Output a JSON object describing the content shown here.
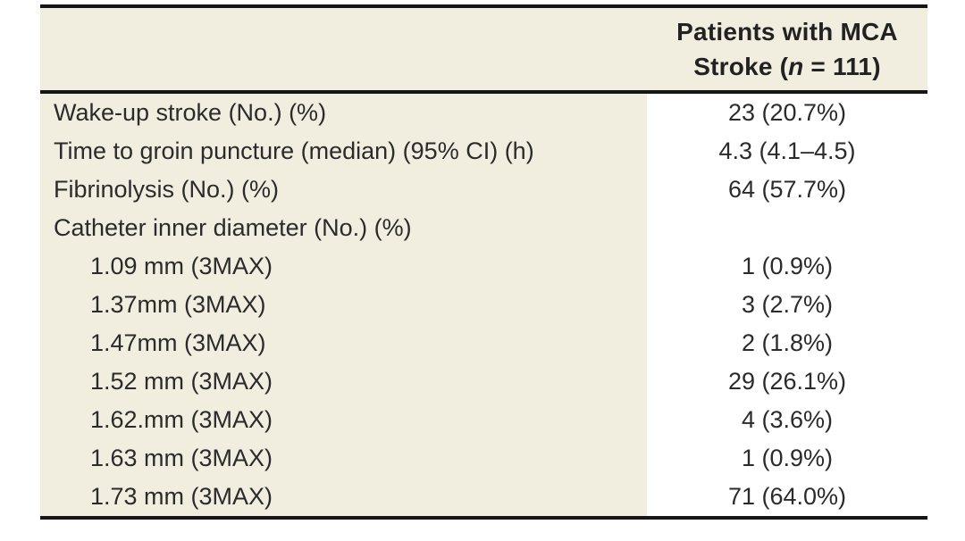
{
  "table": {
    "header": {
      "full_text": "Patients with MCA Stroke (n = 111)",
      "line1": "Patients with MCA",
      "line2_pre": "Stroke (",
      "line2_italic": "n",
      "line2_post": " = 111)"
    },
    "rows": [
      {
        "label": "Wake-up stroke (No.) (%)",
        "value": "23 (20.7%)",
        "indent": false
      },
      {
        "label": "Time to groin puncture (median) (95% CI) (h)",
        "value": "4.3 (4.1–4.5)",
        "indent": false
      },
      {
        "label": "Fibrinolysis (No.) (%)",
        "value": "64 (57.7%)",
        "indent": false
      },
      {
        "label": "Catheter inner diameter (No.) (%)",
        "value": "",
        "indent": false
      },
      {
        "label": "1.09 mm (3MAX)",
        "value": "1 (0.9%)",
        "indent": true
      },
      {
        "label": "1.37mm (3MAX)",
        "value": "3 (2.7%)",
        "indent": true
      },
      {
        "label": "1.47mm (3MAX)",
        "value": "2 (1.8%)",
        "indent": true
      },
      {
        "label": "1.52 mm (3MAX)",
        "value": "29 (26.1%)",
        "indent": true
      },
      {
        "label": "1.62.mm (3MAX)",
        "value": "4 (3.6%)",
        "indent": true
      },
      {
        "label": "1.63 mm (3MAX)",
        "value": "1 (0.9%)",
        "indent": true
      },
      {
        "label": "1.73 mm (3MAX)",
        "value": "71 (64.0%)",
        "indent": true
      }
    ]
  },
  "colors": {
    "table_background": "#f1eee0",
    "value_column_background": "#ffffff",
    "rule": "#161616",
    "text": "#2b2b2b"
  }
}
